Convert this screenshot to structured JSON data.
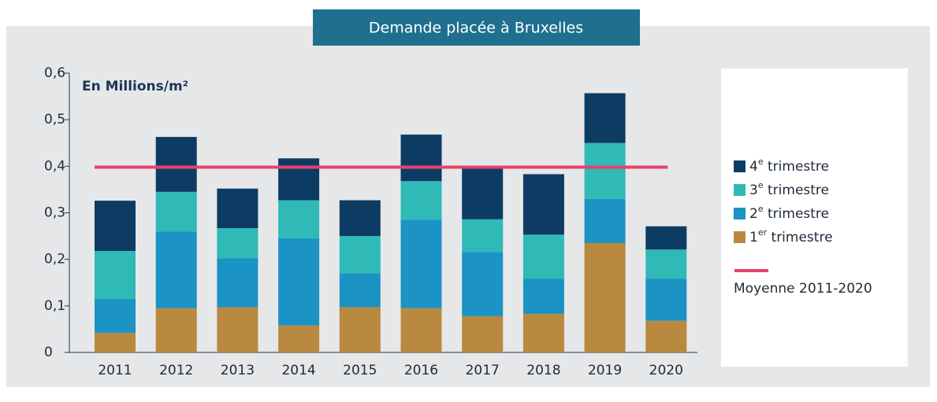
{
  "chart_data": {
    "type": "bar",
    "stacked": true,
    "title": "Demande placée à Bruxelles",
    "y_label": "En Millions/m²",
    "categories": [
      "2011",
      "2012",
      "2013",
      "2014",
      "2015",
      "2016",
      "2017",
      "2018",
      "2019",
      "2020"
    ],
    "series": [
      {
        "name": "1er trimestre",
        "color": "#b8893e",
        "values": [
          0.042,
          0.095,
          0.097,
          0.058,
          0.097,
          0.095,
          0.078,
          0.083,
          0.235,
          0.068
        ]
      },
      {
        "name": "2e trimestre",
        "color": "#1b93c4",
        "values": [
          0.073,
          0.165,
          0.105,
          0.187,
          0.073,
          0.19,
          0.138,
          0.075,
          0.095,
          0.09
        ]
      },
      {
        "name": "3e trimestre",
        "color": "#2fb9b7",
        "values": [
          0.103,
          0.085,
          0.065,
          0.082,
          0.08,
          0.083,
          0.07,
          0.095,
          0.12,
          0.063
        ]
      },
      {
        "name": "4e trimestre",
        "color": "#0c3c63",
        "values": [
          0.108,
          0.118,
          0.085,
          0.09,
          0.077,
          0.1,
          0.113,
          0.13,
          0.107,
          0.05
        ]
      }
    ],
    "average": {
      "name": "Moyenne 2011-2020",
      "value": 0.398,
      "color": "#e8416d"
    },
    "ylim": [
      0,
      0.6
    ],
    "yticks": [
      0,
      {
        "value": 0.1,
        "label": "0,1"
      },
      {
        "value": 0.2,
        "label": "0,2"
      },
      {
        "value": 0.3,
        "label": "0,3"
      },
      {
        "value": 0.4,
        "label": "0,4"
      },
      {
        "value": 0.5,
        "label": "0,5"
      },
      {
        "value": 0.6,
        "label": "0,6"
      }
    ]
  }
}
